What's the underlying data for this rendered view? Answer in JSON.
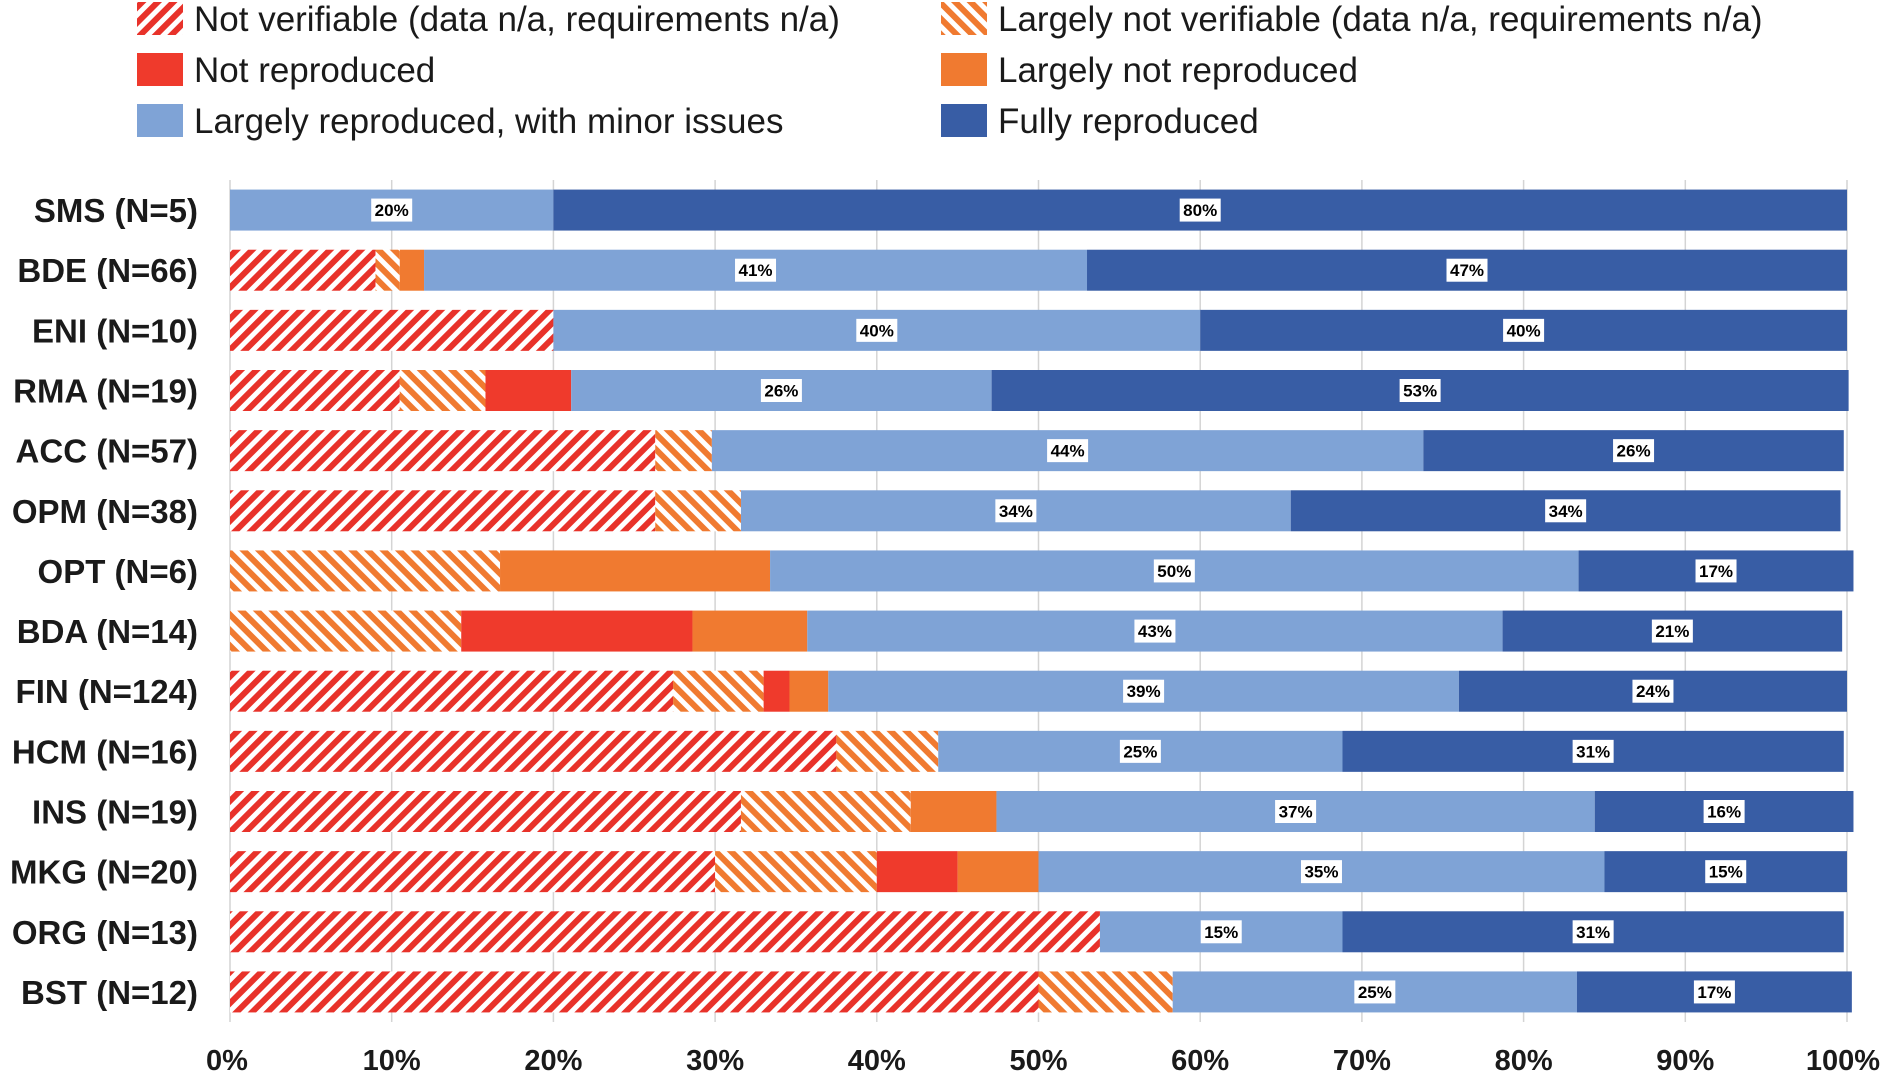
{
  "chart_data": {
    "type": "bar",
    "orientation": "horizontal",
    "stacked": "percent",
    "categories": [
      "SMS (N=5)",
      "BDE (N=66)",
      "ENI (N=10)",
      "RMA (N=19)",
      "ACC (N=57)",
      "OPM (N=38)",
      "OPT (N=6)",
      "BDA (N=14)",
      "FIN (N=124)",
      "HCM (N=16)",
      "INS (N=19)",
      "MKG (N=20)",
      "ORG (N=13)",
      "BST (N=12)"
    ],
    "series": [
      {
        "name": "Not verifiable (data n/a, requirements n/a)",
        "color": "#e8322a",
        "pattern": "hatch-diagonal",
        "values": [
          0,
          9,
          20,
          10.5,
          26.3,
          26.3,
          0,
          0,
          27.4,
          37.5,
          31.6,
          30,
          53.8,
          50
        ]
      },
      {
        "name": "Largely not verifiable (data n/a, requirements n/a)",
        "color": "#f07a30",
        "pattern": "hatch-diagonal",
        "values": [
          0,
          1.5,
          0,
          5.3,
          3.5,
          5.3,
          16.7,
          14.3,
          5.6,
          6.3,
          10.5,
          10,
          0,
          8.3
        ]
      },
      {
        "name": "Not reproduced",
        "color": "#ef3a2c",
        "values": [
          0,
          0,
          0,
          5.3,
          0,
          0,
          0,
          14.3,
          1.6,
          0,
          0,
          5,
          0,
          0
        ]
      },
      {
        "name": "Largely not reproduced",
        "color": "#f07a30",
        "values": [
          0,
          1.5,
          0,
          0,
          0,
          0,
          16.7,
          7.1,
          2.4,
          0,
          5.3,
          5,
          0,
          0
        ]
      },
      {
        "name": "Largely reproduced, with minor issues",
        "color": "#7fa3d6",
        "values": [
          20,
          41,
          40,
          26,
          44,
          34,
          50,
          43,
          39,
          25,
          37,
          35,
          15,
          25
        ],
        "labels": [
          "20%",
          "41%",
          "40%",
          "26%",
          "44%",
          "34%",
          "50%",
          "43%",
          "39%",
          "25%",
          "37%",
          "35%",
          "15%",
          "25%"
        ]
      },
      {
        "name": "Fully reproduced",
        "color": "#385da5",
        "values": [
          80,
          47,
          40,
          53,
          26,
          34,
          17,
          21,
          24,
          31,
          16,
          15,
          31,
          17
        ],
        "labels": [
          "80%",
          "47%",
          "40%",
          "53%",
          "26%",
          "34%",
          "17%",
          "21%",
          "24%",
          "31%",
          "16%",
          "15%",
          "31%",
          "17%"
        ]
      }
    ],
    "xticks": [
      "0%",
      "10%",
      "20%",
      "30%",
      "40%",
      "50%",
      "60%",
      "70%",
      "80%",
      "90%",
      "100%"
    ],
    "xlim": [
      0,
      100
    ],
    "grid": "vertical",
    "legend": "top",
    "title": "",
    "xlabel": "",
    "ylabel": ""
  }
}
